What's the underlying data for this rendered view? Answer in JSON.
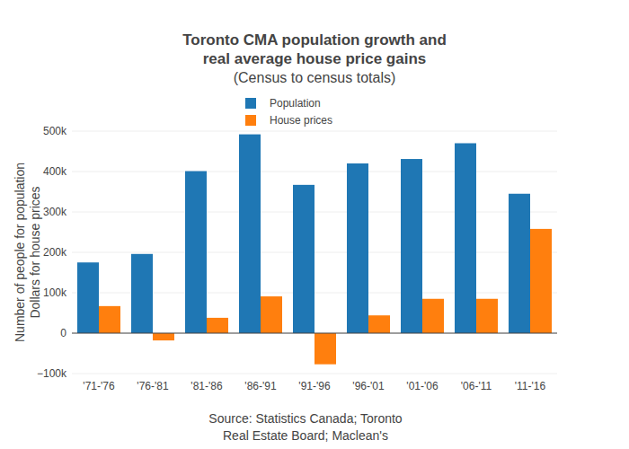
{
  "chart_data": {
    "type": "bar",
    "title": [
      "Toronto CMA population growth and",
      "real average house price gains"
    ],
    "subtitle": "(Census to census totals)",
    "ylabel": [
      "Number of people for population",
      "Dollars for house prices"
    ],
    "annotations": [
      "Source: Statistics Canada; Toronto",
      "Real Estate Board; Maclean's"
    ],
    "categories": [
      "'71-'76",
      "'76-'81",
      "'81-'86",
      "'86-'91",
      "'91-'96",
      "'96-'01",
      "'01-'06",
      "'06-'11",
      "'11-'16"
    ],
    "series": [
      {
        "name": "Population",
        "color": "#1f77b4",
        "values": [
          175000,
          196000,
          401000,
          492000,
          367000,
          420000,
          431000,
          470000,
          345000
        ]
      },
      {
        "name": "House prices",
        "color": "#ff7f0e",
        "values": [
          67000,
          -18000,
          38000,
          91000,
          -77000,
          44000,
          85000,
          85000,
          258000
        ]
      }
    ],
    "ylim": [
      -100000,
      500000
    ],
    "yticks": [
      {
        "value": -100000,
        "label": "−100k"
      },
      0,
      {
        "value": 100000,
        "label": "100k"
      },
      {
        "value": 200000,
        "label": "200k"
      },
      {
        "value": 300000,
        "label": "300k"
      },
      {
        "value": 400000,
        "label": "400k"
      },
      {
        "value": 500000,
        "label": "500k"
      }
    ],
    "grid": true,
    "legend": "top"
  }
}
